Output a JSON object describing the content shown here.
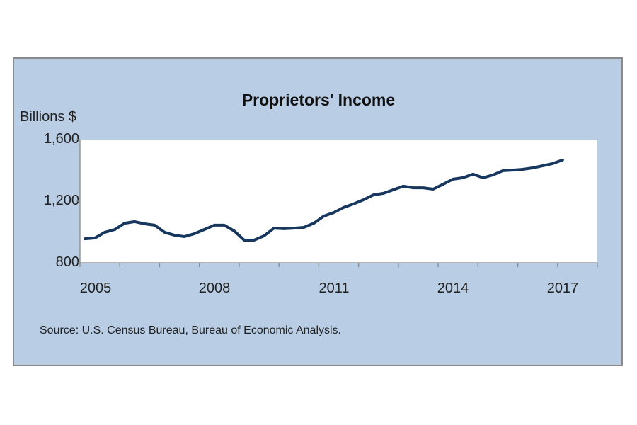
{
  "chart": {
    "title": "Proprietors' Income",
    "ylabel": "Billions $",
    "source": "Source: U.S. Census Bureau, Bureau of Economic Analysis.",
    "y_tick_labels": [
      "1,600",
      "1,200",
      "800"
    ],
    "x_tick_labels": [
      "2005",
      "2008",
      "2011",
      "2014",
      "2017"
    ]
  },
  "colors": {
    "frame_background": "#b9cde4",
    "plot_background": "#ffffff",
    "line": "#17375e",
    "axis": "#8a8a8a"
  },
  "chart_data": {
    "type": "line",
    "title": "Proprietors' Income",
    "xlabel": "",
    "ylabel": "Billions $",
    "ylim": [
      800,
      1600
    ],
    "xlim": [
      2005,
      2018
    ],
    "y_ticks": [
      800,
      1200,
      1600
    ],
    "x_tick_labels": [
      "2005",
      "2008",
      "2011",
      "2014",
      "2017"
    ],
    "grid": false,
    "legend": "none",
    "frequency": "quarterly",
    "x": [
      "2005Q1",
      "2005Q2",
      "2005Q3",
      "2005Q4",
      "2006Q1",
      "2006Q2",
      "2006Q3",
      "2006Q4",
      "2007Q1",
      "2007Q2",
      "2007Q3",
      "2007Q4",
      "2008Q1",
      "2008Q2",
      "2008Q3",
      "2008Q4",
      "2009Q1",
      "2009Q2",
      "2009Q3",
      "2009Q4",
      "2010Q1",
      "2010Q2",
      "2010Q3",
      "2010Q4",
      "2011Q1",
      "2011Q2",
      "2011Q3",
      "2011Q4",
      "2012Q1",
      "2012Q2",
      "2012Q3",
      "2012Q4",
      "2013Q1",
      "2013Q2",
      "2013Q3",
      "2013Q4",
      "2014Q1",
      "2014Q2",
      "2014Q3",
      "2014Q4",
      "2015Q1",
      "2015Q2",
      "2015Q3",
      "2015Q4",
      "2016Q1",
      "2016Q2",
      "2016Q3",
      "2016Q4",
      "2017Q1"
    ],
    "series": [
      {
        "name": "Proprietors' Income",
        "values": [
          956,
          961,
          998,
          1016,
          1057,
          1067,
          1053,
          1044,
          998,
          979,
          970,
          989,
          1016,
          1044,
          1044,
          1007,
          947,
          947,
          975,
          1025,
          1021,
          1025,
          1030,
          1057,
          1103,
          1126,
          1159,
          1182,
          1209,
          1241,
          1251,
          1274,
          1297,
          1287,
          1287,
          1278,
          1310,
          1343,
          1352,
          1375,
          1352,
          1370,
          1398,
          1402,
          1407,
          1416,
          1430,
          1444,
          1467
        ]
      }
    ],
    "source": "Source: U.S. Census Bureau, Bureau of Economic Analysis."
  }
}
